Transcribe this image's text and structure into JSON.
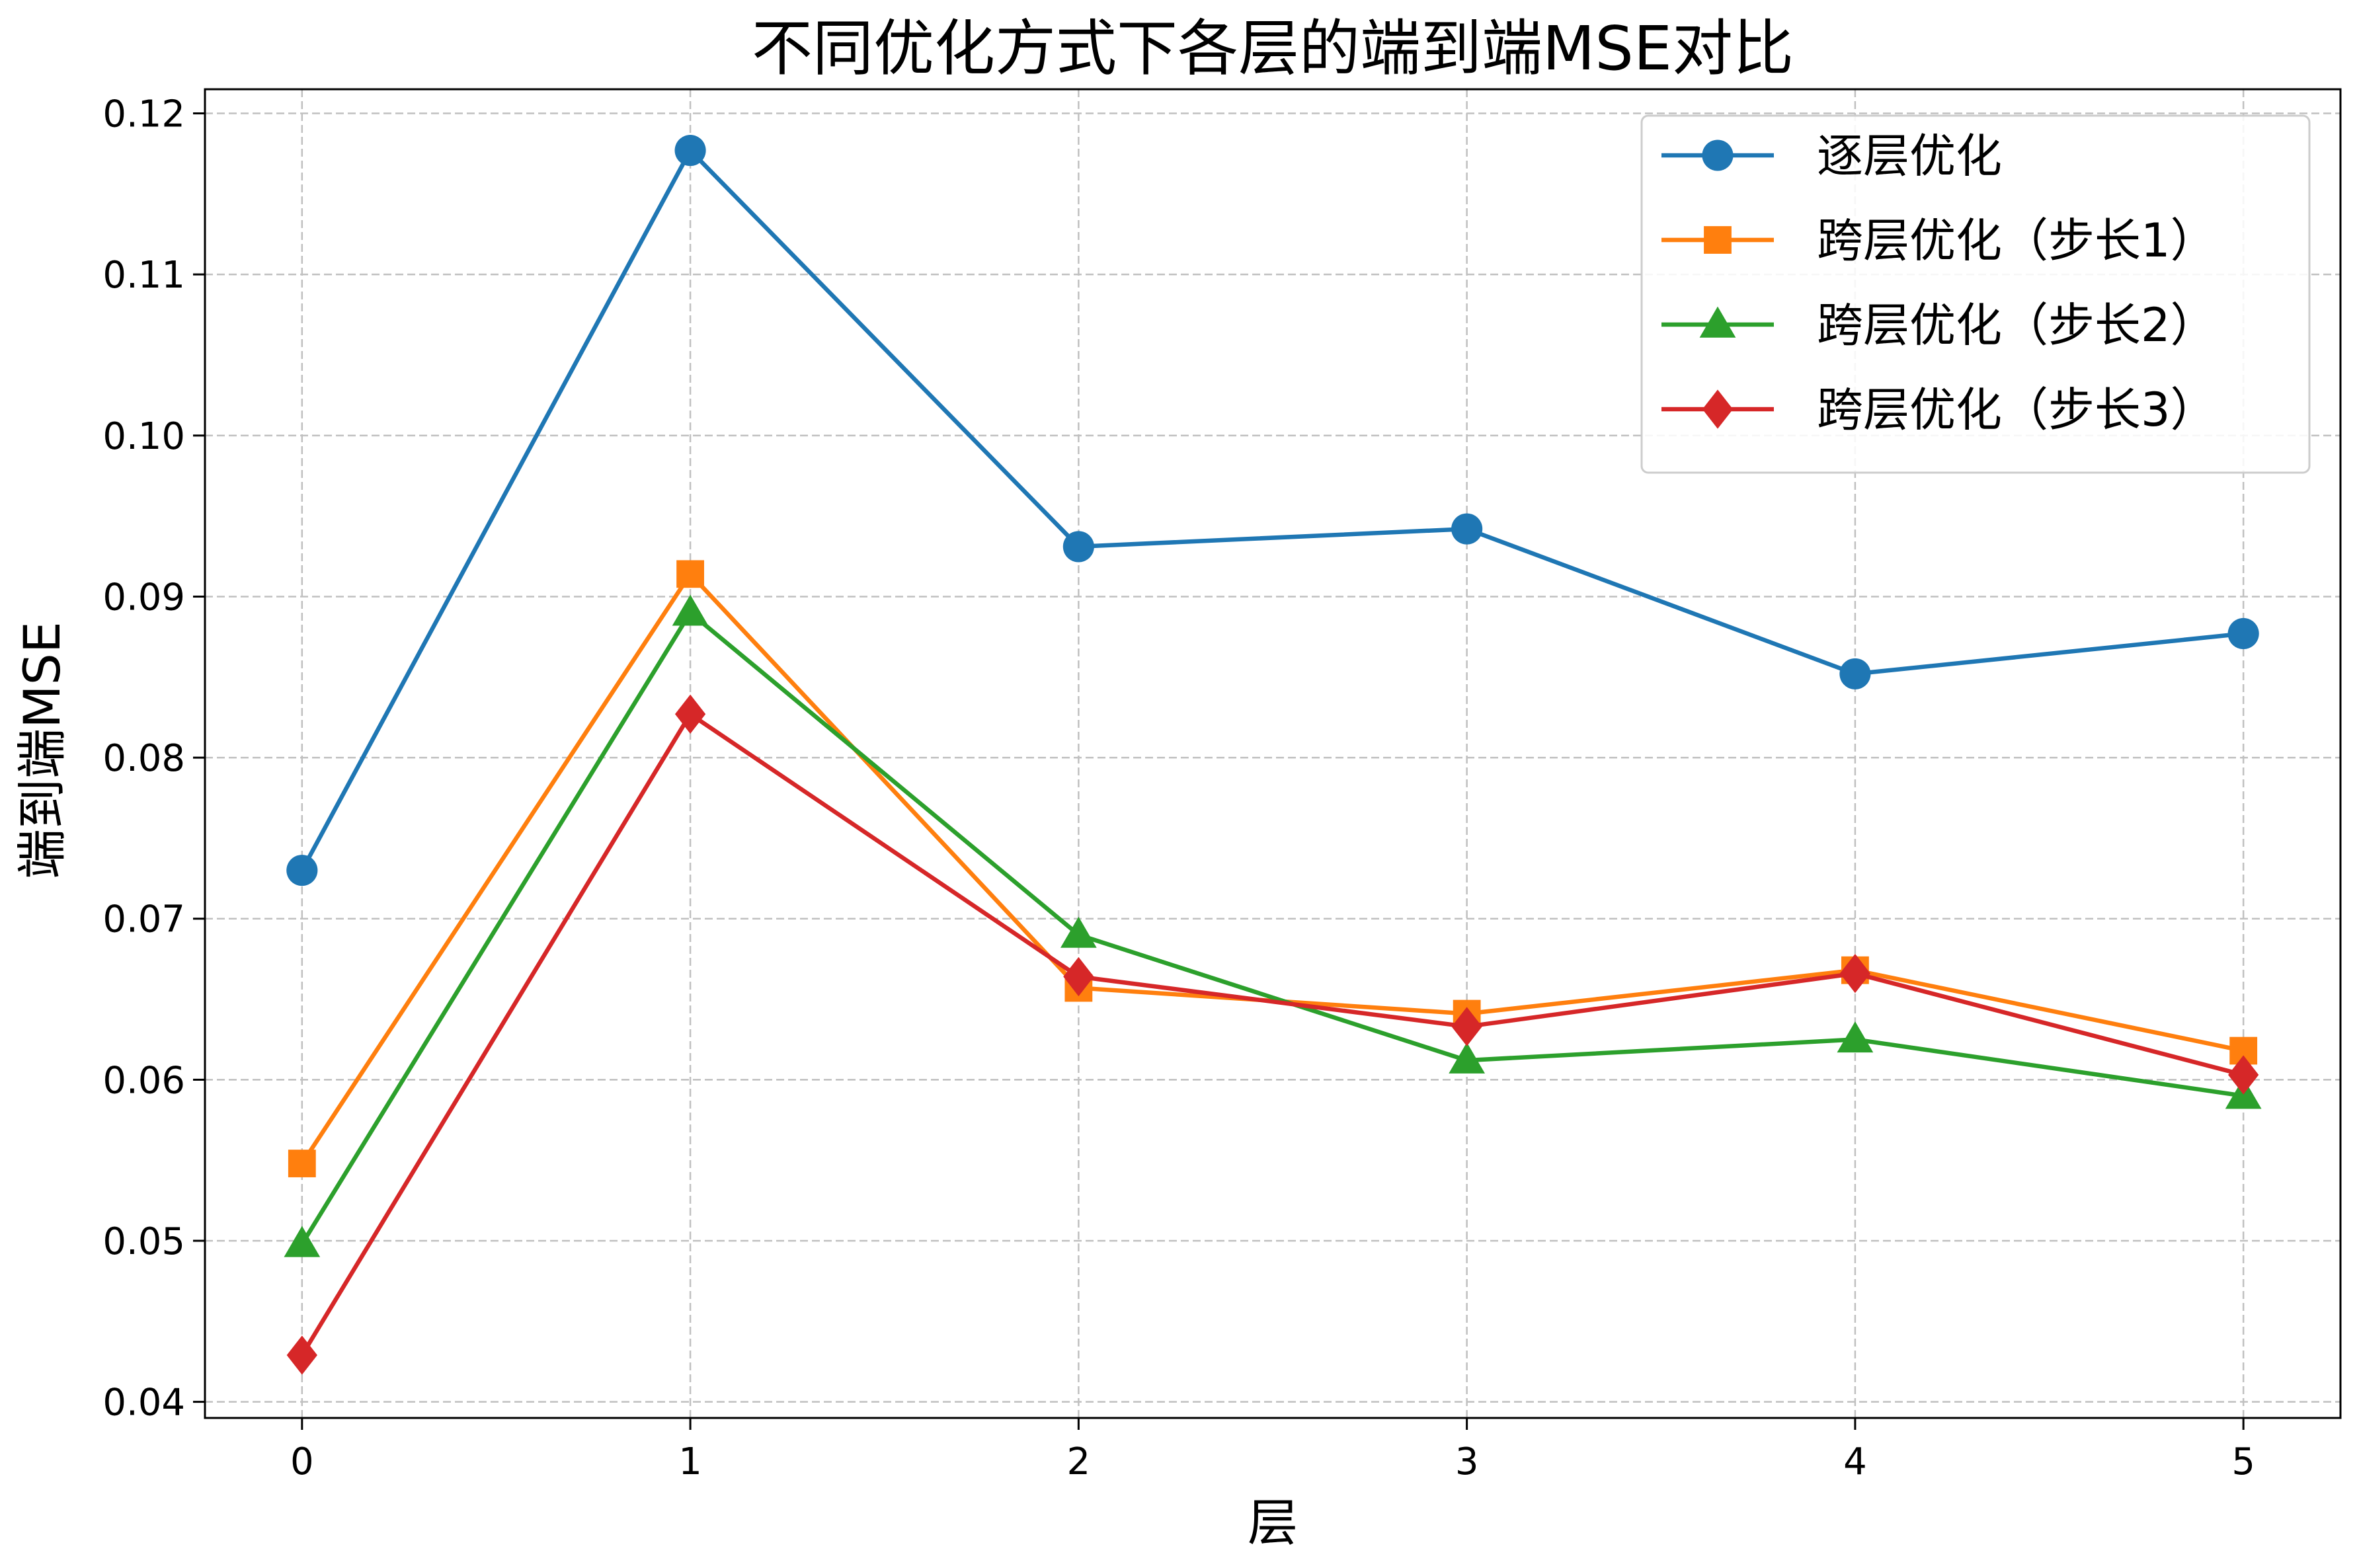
{
  "chart_data": {
    "type": "line",
    "title": "不同优化方式下各层的端到端MSE对比",
    "xlabel": "层",
    "ylabel": "端到端MSE",
    "x": [
      0,
      1,
      2,
      3,
      4,
      5
    ],
    "xticks": [
      "0",
      "1",
      "2",
      "3",
      "4",
      "5"
    ],
    "xlim": [
      -0.25,
      5.25
    ],
    "ylim": [
      0.039,
      0.1215
    ],
    "yticks": [
      "0.04",
      "0.05",
      "0.06",
      "0.07",
      "0.08",
      "0.09",
      "0.10",
      "0.11",
      "0.12"
    ],
    "grid": true,
    "legend_position": "top-right",
    "series": [
      {
        "name": "逐层优化",
        "marker": "circle",
        "color": "#1f77b4",
        "values": [
          0.073,
          0.1177,
          0.0931,
          0.0942,
          0.0852,
          0.0877
        ]
      },
      {
        "name": "跨层优化（步长1）",
        "marker": "square",
        "color": "#ff7f0e",
        "values": [
          0.0548,
          0.0914,
          0.0657,
          0.0641,
          0.0668,
          0.0618
        ]
      },
      {
        "name": "跨层优化（步长2）",
        "marker": "triangle",
        "color": "#2ca02c",
        "values": [
          0.0498,
          0.089,
          0.069,
          0.0612,
          0.0625,
          0.059
        ]
      },
      {
        "name": "跨层优化（步长3）",
        "marker": "diamond",
        "color": "#d62728",
        "values": [
          0.0429,
          0.0827,
          0.0664,
          0.0633,
          0.0666,
          0.0603
        ]
      }
    ]
  }
}
